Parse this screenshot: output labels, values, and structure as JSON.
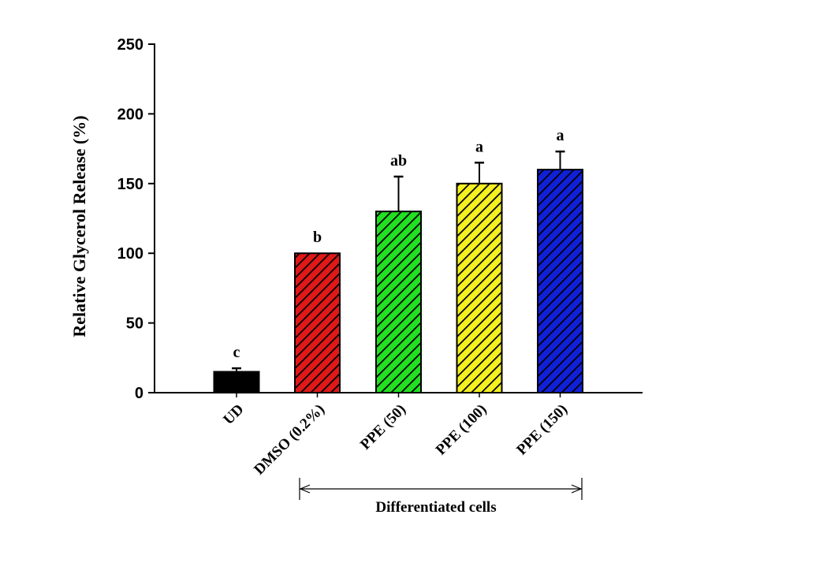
{
  "chart_data": {
    "type": "bar",
    "title": "",
    "xlabel": "",
    "ylabel": "Relative Glycerol Release (%)",
    "ylim": [
      0,
      250
    ],
    "yticks": [
      0,
      50,
      100,
      150,
      200,
      250
    ],
    "grid": false,
    "categories": [
      "UD",
      "DMSO (0.2%)",
      "PPE (50)",
      "PPE (100)",
      "PPE (150)"
    ],
    "values": [
      15,
      100,
      130,
      150,
      160
    ],
    "error_upper": [
      17.5,
      100,
      155,
      165,
      173
    ],
    "significance_labels": [
      "c",
      "b",
      "ab",
      "a",
      "a"
    ],
    "colors": [
      "#000000",
      "#e01818",
      "#22e022",
      "#f5f020",
      "#1020d8"
    ],
    "hatched": [
      false,
      true,
      true,
      true,
      true
    ],
    "group_bracket": {
      "label": "Differentiated cells",
      "from": "DMSO (0.2%)",
      "to": "PPE (150)"
    }
  }
}
